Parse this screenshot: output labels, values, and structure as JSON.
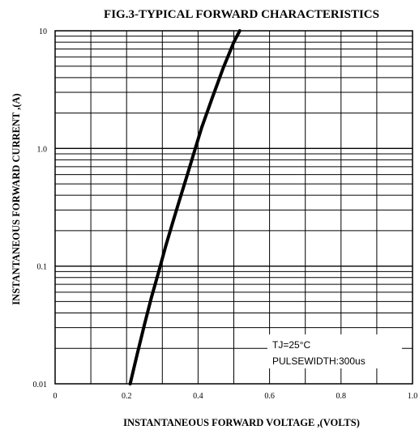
{
  "chart_data": {
    "type": "line",
    "title": "FIG.3-TYPICAL FORWARD CHARACTERISTICS",
    "xlabel": "INSTANTANEOUS FORWARD VOLTAGE ,(VOLTS)",
    "ylabel": "INSTANTANEOUS FORWARD CURRENT ,(A)",
    "x_scale": "linear",
    "y_scale": "log",
    "xlim": [
      0,
      1.0
    ],
    "ylim": [
      0.01,
      10
    ],
    "x_ticks": [
      "0",
      "0.2",
      "0.4",
      "0.6",
      "0.8",
      "1.0"
    ],
    "y_ticks": [
      "0.01",
      "0.1",
      "1.0",
      "10"
    ],
    "grid": true,
    "annotations": [
      "TJ=25°C",
      "PULSEWIDTH:300us"
    ],
    "series": [
      {
        "x": [
          0.21,
          0.23,
          0.25,
          0.27,
          0.29,
          0.31,
          0.33,
          0.35,
          0.37,
          0.39,
          0.41,
          0.44,
          0.47,
          0.5,
          0.53
        ],
        "y": [
          0.01,
          0.018,
          0.032,
          0.055,
          0.09,
          0.15,
          0.24,
          0.38,
          0.6,
          0.95,
          1.5,
          2.7,
          4.8,
          8.0,
          12.0
        ]
      }
    ]
  }
}
